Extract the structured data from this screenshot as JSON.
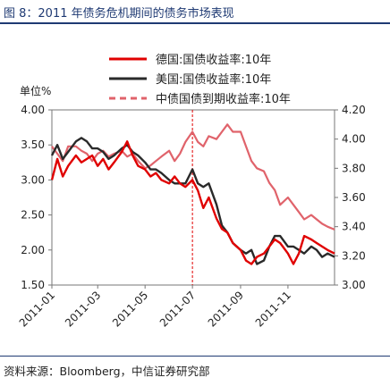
{
  "figure": {
    "title": "图 8：2011 年债务危机期间的债务市场表现",
    "source": "资料来源：Bloomberg，中信证券研究部"
  },
  "chart_data": {
    "type": "line",
    "y_unit_label": "单位%",
    "x_ticks": [
      "2011-01",
      "2011-03",
      "2011-05",
      "2011-07",
      "2011-09",
      "2011-11"
    ],
    "x_range": [
      "2011-01-01",
      "2011-12-31"
    ],
    "y_left": {
      "range": [
        1.5,
        4.0
      ],
      "ticks": [
        "1.50",
        "2.00",
        "2.50",
        "3.00",
        "3.50",
        "4.00"
      ]
    },
    "y_right": {
      "range": [
        3.0,
        4.2
      ],
      "ticks": [
        "3.00",
        "3.20",
        "3.40",
        "3.60",
        "3.80",
        "4.00",
        "4.20"
      ]
    },
    "vline_date": "2011-07-01",
    "legend_position": "top-right",
    "series": [
      {
        "name": "德国:国债收益率:10年",
        "axis": "left",
        "color": "#e00000",
        "style": "solid",
        "points": [
          [
            "2011-01-01",
            3.0
          ],
          [
            "2011-01-08",
            3.3
          ],
          [
            "2011-01-15",
            3.05
          ],
          [
            "2011-01-22",
            3.2
          ],
          [
            "2011-02-01",
            3.35
          ],
          [
            "2011-02-08",
            3.25
          ],
          [
            "2011-02-15",
            3.3
          ],
          [
            "2011-02-22",
            3.35
          ],
          [
            "2011-03-01",
            3.2
          ],
          [
            "2011-03-08",
            3.3
          ],
          [
            "2011-03-15",
            3.15
          ],
          [
            "2011-03-22",
            3.25
          ],
          [
            "2011-04-01",
            3.4
          ],
          [
            "2011-04-08",
            3.55
          ],
          [
            "2011-04-15",
            3.35
          ],
          [
            "2011-04-22",
            3.2
          ],
          [
            "2011-05-01",
            3.15
          ],
          [
            "2011-05-08",
            3.05
          ],
          [
            "2011-05-15",
            3.1
          ],
          [
            "2011-05-22",
            3.0
          ],
          [
            "2011-06-01",
            2.95
          ],
          [
            "2011-06-08",
            3.05
          ],
          [
            "2011-06-15",
            2.95
          ],
          [
            "2011-06-22",
            2.9
          ],
          [
            "2011-07-01",
            3.0
          ],
          [
            "2011-07-08",
            2.85
          ],
          [
            "2011-07-15",
            2.6
          ],
          [
            "2011-07-22",
            2.75
          ],
          [
            "2011-08-01",
            2.45
          ],
          [
            "2011-08-08",
            2.3
          ],
          [
            "2011-08-15",
            2.25
          ],
          [
            "2011-08-22",
            2.1
          ],
          [
            "2011-09-01",
            2.0
          ],
          [
            "2011-09-08",
            1.85
          ],
          [
            "2011-09-15",
            1.8
          ],
          [
            "2011-09-22",
            1.9
          ],
          [
            "2011-10-01",
            1.95
          ],
          [
            "2011-10-08",
            2.05
          ],
          [
            "2011-10-15",
            2.15
          ],
          [
            "2011-10-22",
            2.1
          ],
          [
            "2011-11-01",
            1.95
          ],
          [
            "2011-11-08",
            1.8
          ],
          [
            "2011-11-15",
            1.95
          ],
          [
            "2011-11-22",
            2.2
          ],
          [
            "2011-12-01",
            2.15
          ],
          [
            "2011-12-08",
            2.1
          ],
          [
            "2011-12-15",
            2.05
          ],
          [
            "2011-12-22",
            2.0
          ],
          [
            "2011-12-31",
            1.95
          ]
        ]
      },
      {
        "name": "美国:国债收益率:10年",
        "axis": "left",
        "color": "#2a2a2a",
        "style": "solid",
        "points": [
          [
            "2011-01-01",
            3.35
          ],
          [
            "2011-01-08",
            3.5
          ],
          [
            "2011-01-15",
            3.3
          ],
          [
            "2011-01-22",
            3.4
          ],
          [
            "2011-02-01",
            3.55
          ],
          [
            "2011-02-08",
            3.6
          ],
          [
            "2011-02-15",
            3.55
          ],
          [
            "2011-02-22",
            3.45
          ],
          [
            "2011-03-01",
            3.45
          ],
          [
            "2011-03-08",
            3.4
          ],
          [
            "2011-03-15",
            3.3
          ],
          [
            "2011-03-22",
            3.35
          ],
          [
            "2011-04-01",
            3.45
          ],
          [
            "2011-04-08",
            3.5
          ],
          [
            "2011-04-15",
            3.4
          ],
          [
            "2011-04-22",
            3.35
          ],
          [
            "2011-05-01",
            3.25
          ],
          [
            "2011-05-08",
            3.15
          ],
          [
            "2011-05-15",
            3.15
          ],
          [
            "2011-05-22",
            3.1
          ],
          [
            "2011-06-01",
            3.0
          ],
          [
            "2011-06-08",
            2.95
          ],
          [
            "2011-06-15",
            2.95
          ],
          [
            "2011-06-22",
            2.95
          ],
          [
            "2011-07-01",
            3.15
          ],
          [
            "2011-07-08",
            2.95
          ],
          [
            "2011-07-15",
            2.9
          ],
          [
            "2011-07-22",
            2.95
          ],
          [
            "2011-08-01",
            2.65
          ],
          [
            "2011-08-08",
            2.35
          ],
          [
            "2011-08-15",
            2.25
          ],
          [
            "2011-08-22",
            2.1
          ],
          [
            "2011-09-01",
            2.0
          ],
          [
            "2011-09-08",
            1.95
          ],
          [
            "2011-09-15",
            2.0
          ],
          [
            "2011-09-22",
            1.8
          ],
          [
            "2011-10-01",
            1.85
          ],
          [
            "2011-10-08",
            2.05
          ],
          [
            "2011-10-15",
            2.2
          ],
          [
            "2011-10-22",
            2.2
          ],
          [
            "2011-11-01",
            2.05
          ],
          [
            "2011-11-08",
            2.05
          ],
          [
            "2011-11-15",
            2.0
          ],
          [
            "2011-11-22",
            1.95
          ],
          [
            "2011-12-01",
            2.05
          ],
          [
            "2011-12-08",
            2.0
          ],
          [
            "2011-12-15",
            1.9
          ],
          [
            "2011-12-22",
            1.95
          ],
          [
            "2011-12-31",
            1.9
          ]
        ]
      },
      {
        "name": "中债国债到期收益率:10年",
        "axis": "right",
        "color": "#e0636b",
        "style": "dashed",
        "points": [
          [
            "2011-01-01",
            3.95
          ],
          [
            "2011-01-08",
            3.9
          ],
          [
            "2011-01-15",
            3.85
          ],
          [
            "2011-01-22",
            3.95
          ],
          [
            "2011-02-01",
            3.95
          ],
          [
            "2011-02-08",
            3.92
          ],
          [
            "2011-02-15",
            3.9
          ],
          [
            "2011-02-22",
            3.85
          ],
          [
            "2011-03-01",
            3.9
          ],
          [
            "2011-03-08",
            3.92
          ],
          [
            "2011-03-15",
            3.88
          ],
          [
            "2011-03-22",
            3.9
          ],
          [
            "2011-04-01",
            3.92
          ],
          [
            "2011-04-08",
            3.88
          ],
          [
            "2011-04-15",
            3.9
          ],
          [
            "2011-04-22",
            3.85
          ],
          [
            "2011-05-01",
            3.8
          ],
          [
            "2011-05-08",
            3.82
          ],
          [
            "2011-05-15",
            3.85
          ],
          [
            "2011-05-22",
            3.88
          ],
          [
            "2011-06-01",
            3.92
          ],
          [
            "2011-06-08",
            3.85
          ],
          [
            "2011-06-15",
            3.9
          ],
          [
            "2011-06-22",
            3.98
          ],
          [
            "2011-07-01",
            4.05
          ],
          [
            "2011-07-08",
            3.98
          ],
          [
            "2011-07-15",
            3.95
          ],
          [
            "2011-07-22",
            4.02
          ],
          [
            "2011-08-01",
            4.0
          ],
          [
            "2011-08-08",
            4.05
          ],
          [
            "2011-08-15",
            4.1
          ],
          [
            "2011-08-22",
            4.05
          ],
          [
            "2011-09-01",
            4.05
          ],
          [
            "2011-09-08",
            3.95
          ],
          [
            "2011-09-15",
            3.85
          ],
          [
            "2011-09-22",
            3.8
          ],
          [
            "2011-10-01",
            3.78
          ],
          [
            "2011-10-08",
            3.7
          ],
          [
            "2011-10-15",
            3.65
          ],
          [
            "2011-10-22",
            3.55
          ],
          [
            "2011-11-01",
            3.6
          ],
          [
            "2011-11-08",
            3.55
          ],
          [
            "2011-11-15",
            3.5
          ],
          [
            "2011-11-22",
            3.45
          ],
          [
            "2011-12-01",
            3.48
          ],
          [
            "2011-12-08",
            3.45
          ],
          [
            "2011-12-15",
            3.42
          ],
          [
            "2011-12-22",
            3.4
          ],
          [
            "2011-12-31",
            3.38
          ]
        ]
      }
    ]
  }
}
